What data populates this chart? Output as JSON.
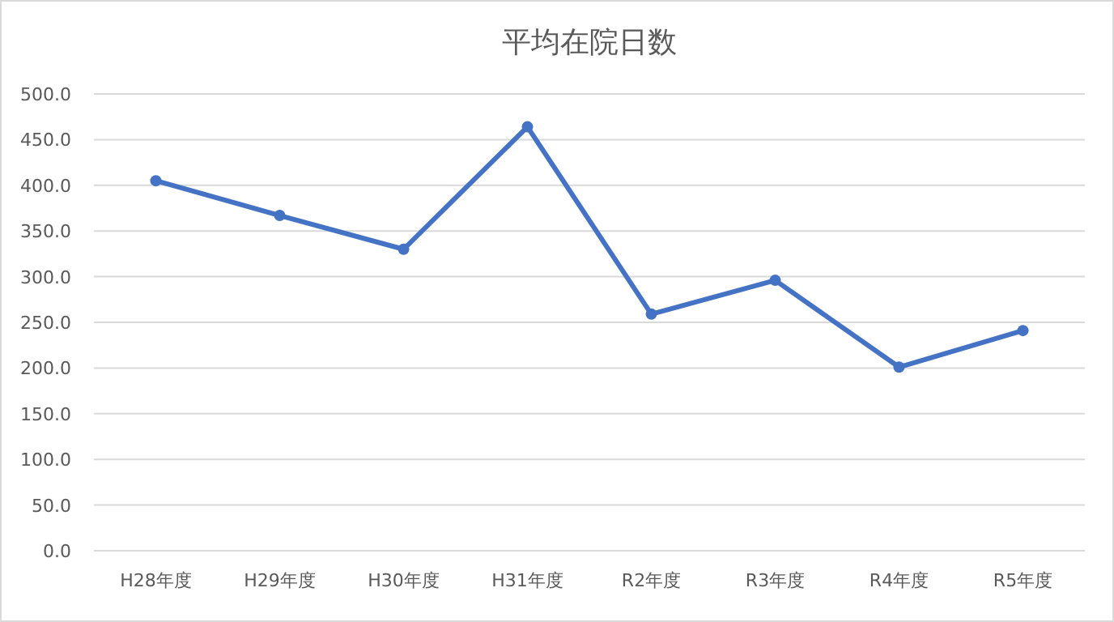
{
  "chart_data": {
    "type": "line",
    "title": "平均在院日数",
    "categories": [
      "H28年度",
      "H29年度",
      "H30年度",
      "H31年度",
      "R2年度",
      "R3年度",
      "R4年度",
      "R5年度"
    ],
    "series": [
      {
        "color": "#4472c4",
        "values": [
          405,
          367,
          330,
          464,
          259,
          296,
          201,
          241
        ]
      }
    ],
    "ylim": [
      0,
      500
    ],
    "yticks": [
      {
        "value": 0,
        "label": "0.0"
      },
      {
        "value": 50,
        "label": "50.0"
      },
      {
        "value": 100,
        "label": "100.0"
      },
      {
        "value": 150,
        "label": "150.0"
      },
      {
        "value": 200,
        "label": "200.0"
      },
      {
        "value": 250,
        "label": "250.0"
      },
      {
        "value": 300,
        "label": "300.0"
      },
      {
        "value": 350,
        "label": "350.0"
      },
      {
        "value": 400,
        "label": "400.0"
      },
      {
        "value": 450,
        "label": "450.0"
      },
      {
        "value": 500,
        "label": "500.0"
      }
    ],
    "grid": "y",
    "marker": "circle",
    "line_style": "solid"
  }
}
